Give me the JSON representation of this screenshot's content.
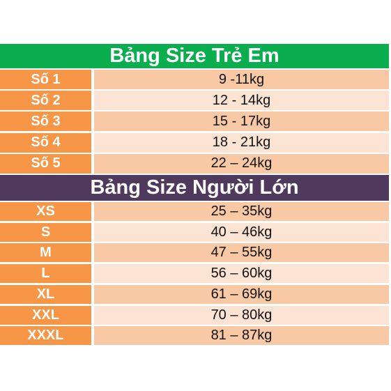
{
  "sections": [
    {
      "title": "Bảng Size Trẻ Em",
      "rows": [
        [
          "Số 1",
          "9 -11kg"
        ],
        [
          "Số 2",
          "12 - 14kg"
        ],
        [
          "Số 3",
          "15 - 17kg"
        ],
        [
          "Số 4",
          "18 - 21kg"
        ],
        [
          "Số 5",
          "22 – 24kg"
        ]
      ]
    },
    {
      "title": "Bảng Size Người Lớn",
      "rows": [
        [
          "XS",
          "25 – 35kg"
        ],
        [
          "S",
          "40 – 46kg"
        ],
        [
          "M",
          "47 – 55kg"
        ],
        [
          "L",
          "56 – 60kg"
        ],
        [
          "XL",
          "61 – 69kg"
        ],
        [
          "XXL",
          "70 – 80kg"
        ],
        [
          "XXXL",
          "81 – 87kg"
        ]
      ]
    }
  ]
}
